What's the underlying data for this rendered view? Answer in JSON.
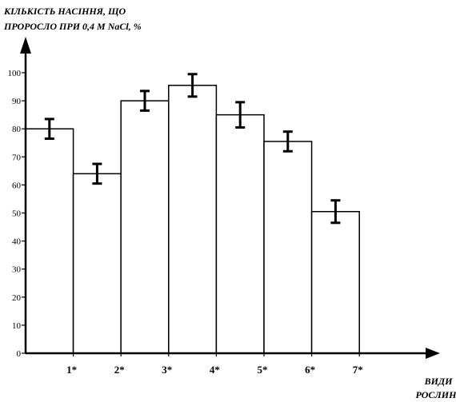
{
  "chart_data": {
    "type": "bar",
    "ylabel_lines": [
      "КІЛЬКІСТЬ НАСІННЯ, ЩО",
      "ПРОРОСЛО ПРИ 0,4 М NaCl, %"
    ],
    "xlabel_lines": [
      "ВИДИ",
      "РОСЛИН"
    ],
    "categories": [
      "1*",
      "2*",
      "3*",
      "4*",
      "5*",
      "6*",
      "7*"
    ],
    "values": [
      80,
      64,
      90,
      95.5,
      85,
      75.5,
      50.5
    ],
    "errors": [
      3.5,
      3.5,
      3.5,
      4,
      4.5,
      3.5,
      4
    ],
    "ylim": [
      0,
      100
    ],
    "yticks": [
      0,
      10,
      20,
      30,
      40,
      50,
      60,
      70,
      80,
      90,
      100
    ],
    "grid": false,
    "legend": false
  }
}
